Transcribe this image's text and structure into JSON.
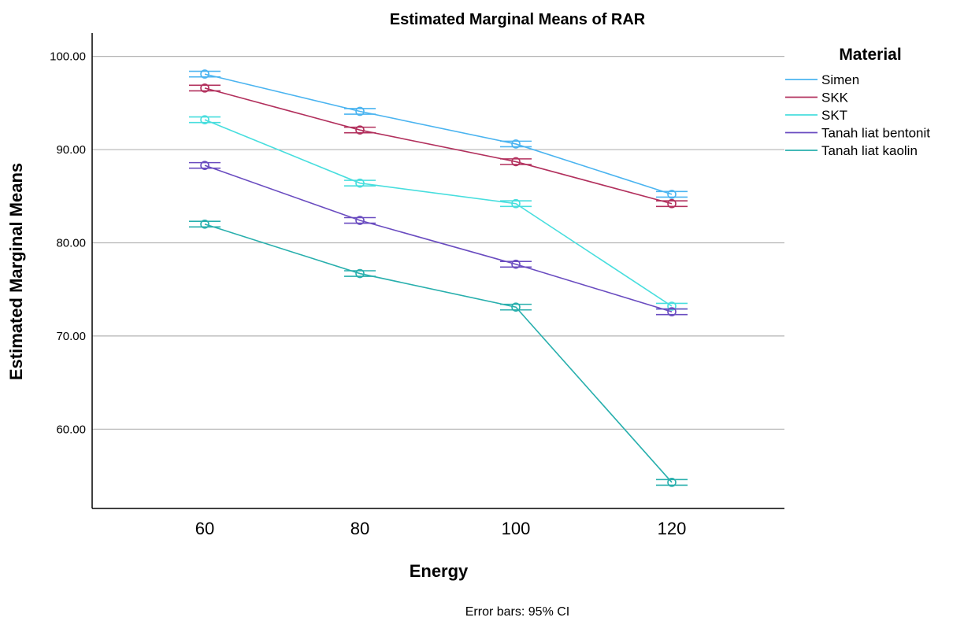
{
  "chart_data": {
    "type": "line",
    "title": "Estimated Marginal Means of RAR",
    "xlabel": "Energy",
    "ylabel": "Estimated Marginal Means",
    "footnote": "Error bars: 95% CI",
    "x": [
      "60",
      "80",
      "100",
      "120"
    ],
    "ylim": [
      51.5,
      102.5
    ],
    "yticks": [
      "60.00",
      "70.00",
      "80.00",
      "90.00",
      "100.00"
    ],
    "ytick_values": [
      60,
      70,
      80,
      90,
      100
    ],
    "grid": true,
    "legend": {
      "title": "Material",
      "placement": "right"
    },
    "series": [
      {
        "name": "Simen",
        "color": "#4bb4f0",
        "values": [
          98.1,
          94.1,
          90.6,
          85.2
        ],
        "ci": [
          0.3,
          0.3,
          0.3,
          0.3
        ]
      },
      {
        "name": "SKK",
        "color": "#b2305d",
        "values": [
          96.6,
          92.1,
          88.7,
          84.2
        ],
        "ci": [
          0.3,
          0.3,
          0.3,
          0.3
        ]
      },
      {
        "name": "SKT",
        "color": "#48dede",
        "values": [
          93.2,
          86.4,
          84.2,
          73.2
        ],
        "ci": [
          0.3,
          0.3,
          0.3,
          0.3
        ]
      },
      {
        "name": "Tanah liat bentonit",
        "color": "#6a4cc0",
        "values": [
          88.3,
          82.4,
          77.7,
          72.6
        ],
        "ci": [
          0.3,
          0.3,
          0.3,
          0.3
        ]
      },
      {
        "name": "Tanah liat kaolin",
        "color": "#28afad",
        "values": [
          82.0,
          76.7,
          73.1,
          54.3
        ],
        "ci": [
          0.3,
          0.3,
          0.3,
          0.3
        ]
      }
    ]
  }
}
